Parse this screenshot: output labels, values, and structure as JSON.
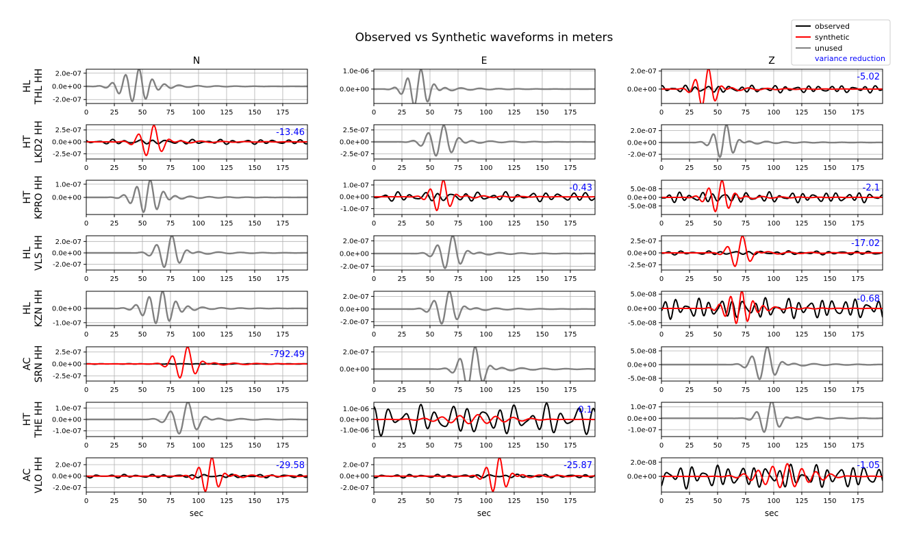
{
  "chart_data": {
    "type": "line",
    "title": "Observed vs Synthetic waveforms in meters",
    "columns": [
      "N",
      "E",
      "Z"
    ],
    "xlabel": "sec",
    "xlim": [
      0,
      197
    ],
    "xticks": [
      0,
      25,
      50,
      75,
      100,
      125,
      150,
      175
    ],
    "legend": {
      "position": "top-right",
      "entries": [
        {
          "label": "observed",
          "color": "#000000",
          "type": "line"
        },
        {
          "label": "synthetic",
          "color": "#ff0000",
          "type": "line"
        },
        {
          "label": "unused",
          "color": "#808080",
          "type": "line"
        },
        {
          "label": "variance reduction",
          "color": "#0000ff",
          "type": "text"
        }
      ]
    },
    "grid": true,
    "rows": [
      {
        "network": "HL",
        "station": "THL HH",
        "panels": [
          {
            "component": "N",
            "used": false,
            "ylim": [
              -2.6e-07,
              2.6e-07
            ],
            "yticks": [
              2e-07,
              0,
              -2e-07
            ],
            "ytick_labels": [
              "2.0e-07",
              "0.0e+00",
              "-2.0e-07"
            ],
            "vr": "",
            "wave": {
              "c": 45,
              "w": 18,
              "amp": 2.4e-07,
              "p": 12
            }
          },
          {
            "component": "E",
            "used": false,
            "ylim": [
              -8e-07,
              1.1e-06
            ],
            "yticks": [
              1e-06,
              0
            ],
            "ytick_labels": [
              "1.0e-06",
              "0.0e+00"
            ],
            "vr": "",
            "wave": {
              "c": 40,
              "w": 14,
              "amp": 1e-06,
              "p": 12
            }
          },
          {
            "component": "Z",
            "used": true,
            "ylim": [
              -1.6e-07,
              2.2e-07
            ],
            "yticks": [
              2e-07,
              0
            ],
            "ytick_labels": [
              "2.0e-07",
              "0.0e+00"
            ],
            "vr": "-5.02",
            "obs": {
              "amp": 4e-08,
              "p": 10,
              "seed": 1
            },
            "syn": {
              "c": 40,
              "w": 12,
              "amp": 2.1e-07,
              "p": 12
            }
          }
        ]
      },
      {
        "network": "HT",
        "station": "LKD2 HH",
        "panels": [
          {
            "component": "N",
            "used": true,
            "ylim": [
              -3.6e-07,
              3.6e-07
            ],
            "yticks": [
              2.5e-07,
              0,
              -2.5e-07
            ],
            "ytick_labels": [
              "2.5e-07",
              "0.0e+00",
              "-2.5e-07"
            ],
            "vr": "-13.46",
            "obs": {
              "amp": 5e-08,
              "p": 12,
              "seed": 2
            },
            "syn": {
              "c": 58,
              "w": 14,
              "amp": 3.2e-07,
              "p": 14
            }
          },
          {
            "component": "E",
            "used": false,
            "ylim": [
              -3.6e-07,
              3.6e-07
            ],
            "yticks": [
              2.5e-07,
              0,
              -2.5e-07
            ],
            "ytick_labels": [
              "2.5e-07",
              "0.0e+00",
              "-2.5e-07"
            ],
            "vr": "",
            "wave": {
              "c": 60,
              "w": 16,
              "amp": 3.2e-07,
              "p": 14
            }
          },
          {
            "component": "Z",
            "used": false,
            "ylim": [
              -2.8e-07,
              3e-07
            ],
            "yticks": [
              2e-07,
              0,
              -2e-07
            ],
            "ytick_labels": [
              "2.0e-07",
              "0.0e+00",
              "-2.0e-07"
            ],
            "vr": "",
            "wave": {
              "c": 56,
              "w": 12,
              "amp": 2.8e-07,
              "p": 12
            }
          }
        ]
      },
      {
        "network": "HT",
        "station": "KPRO HH",
        "panels": [
          {
            "component": "N",
            "used": false,
            "ylim": [
              -1.3e-07,
              1.3e-07
            ],
            "yticks": [
              1e-07,
              0
            ],
            "ytick_labels": [
              "1.0e-07",
              "0.0e+00"
            ],
            "vr": "",
            "wave": {
              "c": 55,
              "w": 16,
              "amp": 1.2e-07,
              "p": 12
            }
          },
          {
            "component": "E",
            "used": true,
            "ylim": [
              -1.5e-07,
              1.4e-07
            ],
            "yticks": [
              1e-07,
              0,
              -1e-07
            ],
            "ytick_labels": [
              "1.0e-07",
              "0.0e+00",
              "-1.0e-07"
            ],
            "vr": "-0.43",
            "obs": {
              "amp": 4e-08,
              "p": 12,
              "seed": 3
            },
            "syn": {
              "c": 60,
              "w": 12,
              "amp": 1.3e-07,
              "p": 12
            }
          },
          {
            "component": "Z",
            "used": true,
            "ylim": [
              -1e-07,
              1e-07
            ],
            "yticks": [
              5e-08,
              0,
              -5e-08
            ],
            "ytick_labels": [
              "5.0e-08",
              "0.0e+00",
              "-5.0e-08"
            ],
            "vr": "-2.1",
            "obs": {
              "amp": 3e-08,
              "p": 10,
              "seed": 4
            },
            "syn": {
              "c": 52,
              "w": 14,
              "amp": 9e-08,
              "p": 12
            }
          }
        ]
      },
      {
        "network": "HL",
        "station": "VLS HH",
        "panels": [
          {
            "component": "N",
            "used": false,
            "ylim": [
              -3e-07,
              3e-07
            ],
            "yticks": [
              2e-07,
              0,
              -2e-07
            ],
            "ytick_labels": [
              "2.0e-07",
              "0.0e+00",
              "-2.0e-07"
            ],
            "vr": "",
            "wave": {
              "c": 74,
              "w": 14,
              "amp": 2.8e-07,
              "p": 14
            }
          },
          {
            "component": "E",
            "used": false,
            "ylim": [
              -2.6e-07,
              2.8e-07
            ],
            "yticks": [
              2e-07,
              0,
              -2e-07
            ],
            "ytick_labels": [
              "2.0e-07",
              "0.0e+00",
              "-2.0e-07"
            ],
            "vr": "",
            "wave": {
              "c": 68,
              "w": 14,
              "amp": 2.6e-07,
              "p": 14
            }
          },
          {
            "component": "Z",
            "used": true,
            "ylim": [
              -3.6e-07,
              3.6e-07
            ],
            "yticks": [
              2.5e-07,
              0,
              -2.5e-07
            ],
            "ytick_labels": [
              "2.5e-07",
              "0.0e+00",
              "-2.5e-07"
            ],
            "vr": "-17.02",
            "obs": {
              "amp": 4e-08,
              "p": 12,
              "seed": 5
            },
            "syn": {
              "c": 70,
              "w": 12,
              "amp": 3.3e-07,
              "p": 14
            }
          }
        ]
      },
      {
        "network": "HL",
        "station": "KZN HH",
        "panels": [
          {
            "component": "N",
            "used": false,
            "ylim": [
              -1.2e-07,
              1.2e-07
            ],
            "yticks": [
              0,
              -1e-07
            ],
            "ytick_labels": [
              "0.0e+00",
              "-1.0e-07"
            ],
            "vr": "",
            "wave": {
              "c": 66,
              "w": 18,
              "amp": 1.1e-07,
              "p": 12
            }
          },
          {
            "component": "E",
            "used": false,
            "ylim": [
              -2.6e-07,
              2.8e-07
            ],
            "yticks": [
              2e-07,
              0,
              -2e-07
            ],
            "ytick_labels": [
              "2.0e-07",
              "0.0e+00",
              "-2.0e-07"
            ],
            "vr": "",
            "wave": {
              "c": 65,
              "w": 14,
              "amp": 2.6e-07,
              "p": 14
            }
          },
          {
            "component": "Z",
            "used": true,
            "ylim": [
              -6e-08,
              6e-08
            ],
            "yticks": [
              5e-08,
              0,
              -5e-08
            ],
            "ytick_labels": [
              "5.0e-08",
              "0.0e+00",
              "-5.0e-08"
            ],
            "vr": "-0.68",
            "obs": {
              "amp": 3.5e-08,
              "p": 10,
              "seed": 6
            },
            "syn": {
              "c": 70,
              "w": 16,
              "amp": 5.5e-08,
              "p": 10
            }
          }
        ]
      },
      {
        "network": "AC",
        "station": "SRN HH",
        "panels": [
          {
            "component": "N",
            "used": true,
            "ylim": [
              -3.6e-07,
              3.6e-07
            ],
            "yticks": [
              2.5e-07,
              0,
              -2.5e-07
            ],
            "ytick_labels": [
              "2.5e-07",
              "0.0e+00",
              "-2.5e-07"
            ],
            "vr": "-792.49",
            "obs": {
              "amp": 6e-09,
              "p": 12,
              "seed": 7
            },
            "syn": {
              "c": 88,
              "w": 14,
              "amp": 3.3e-07,
              "p": 14
            }
          },
          {
            "component": "E",
            "used": false,
            "ylim": [
              -1.4e-07,
              2.6e-07
            ],
            "yticks": [
              2e-07,
              0
            ],
            "ytick_labels": [
              "2.0e-07",
              "0.0e+00"
            ],
            "vr": "",
            "wave": {
              "c": 88,
              "w": 14,
              "amp": 2.4e-07,
              "p": 14
            }
          },
          {
            "component": "Z",
            "used": false,
            "ylim": [
              -6e-08,
              6.5e-08
            ],
            "yticks": [
              5e-08,
              0,
              -5e-08
            ],
            "ytick_labels": [
              "5.0e-08",
              "0.0e+00",
              "-5.0e-08"
            ],
            "vr": "",
            "wave": {
              "c": 92,
              "w": 14,
              "amp": 6e-08,
              "p": 14
            }
          }
        ]
      },
      {
        "network": "HT",
        "station": "THE HH",
        "panels": [
          {
            "component": "N",
            "used": false,
            "ylim": [
              -1.5e-07,
              1.5e-07
            ],
            "yticks": [
              1e-07,
              0,
              -1e-07
            ],
            "ytick_labels": [
              "1.0e-07",
              "0.0e+00",
              "-1.0e-07"
            ],
            "vr": "",
            "wave": {
              "c": 88,
              "w": 16,
              "amp": 1.4e-07,
              "p": 16
            }
          },
          {
            "component": "E",
            "used": true,
            "ylim": [
              -1.6e-06,
              1.6e-06
            ],
            "yticks": [
              1e-06,
              0,
              -1e-06
            ],
            "ytick_labels": [
              "1.0e-06",
              "0.0e+00",
              "-1.0e-06"
            ],
            "vr": "0.1",
            "obs": {
              "amp": 1.4e-06,
              "p": 14,
              "seed": 8
            },
            "syn": {
              "c": 90,
              "w": 40,
              "amp": 4e-07,
              "p": 16
            }
          },
          {
            "component": "Z",
            "used": false,
            "ylim": [
              -1.6e-07,
              1.4e-07
            ],
            "yticks": [
              1e-07,
              0,
              -1e-07
            ],
            "ytick_labels": [
              "1.0e-07",
              "0.0e+00",
              "-1.0e-07"
            ],
            "vr": "",
            "wave": {
              "c": 96,
              "w": 12,
              "amp": 1.4e-07,
              "p": 14
            }
          }
        ]
      },
      {
        "network": "AC",
        "station": "VLO HH",
        "panels": [
          {
            "component": "N",
            "used": true,
            "ylim": [
              -2.8e-07,
              3.2e-07
            ],
            "yticks": [
              2e-07,
              0,
              -2e-07
            ],
            "ytick_labels": [
              "2.0e-07",
              "0.0e+00",
              "-2.0e-07"
            ],
            "vr": "-29.58",
            "obs": {
              "amp": 3e-08,
              "p": 12,
              "seed": 9
            },
            "syn": {
              "c": 110,
              "w": 12,
              "amp": 3e-07,
              "p": 12
            }
          },
          {
            "component": "E",
            "used": true,
            "ylim": [
              -2.8e-07,
              3.2e-07
            ],
            "yticks": [
              2e-07,
              0,
              -2e-07
            ],
            "ytick_labels": [
              "2.0e-07",
              "0.0e+00",
              "-2.0e-07"
            ],
            "vr": "-25.87",
            "obs": {
              "amp": 3e-08,
              "p": 12,
              "seed": 10
            },
            "syn": {
              "c": 110,
              "w": 12,
              "amp": 3e-07,
              "p": 12
            }
          },
          {
            "component": "Z",
            "used": true,
            "ylim": [
              -2.2e-08,
              2.6e-08
            ],
            "yticks": [
              2e-08,
              0
            ],
            "ytick_labels": [
              "2.0e-08",
              "0.0e+00"
            ],
            "vr": "-1.05",
            "obs": {
              "amp": 1.6e-08,
              "p": 11,
              "seed": 11
            },
            "syn": {
              "c": 110,
              "w": 30,
              "amp": 1.6e-08,
              "p": 13
            }
          }
        ]
      }
    ]
  }
}
